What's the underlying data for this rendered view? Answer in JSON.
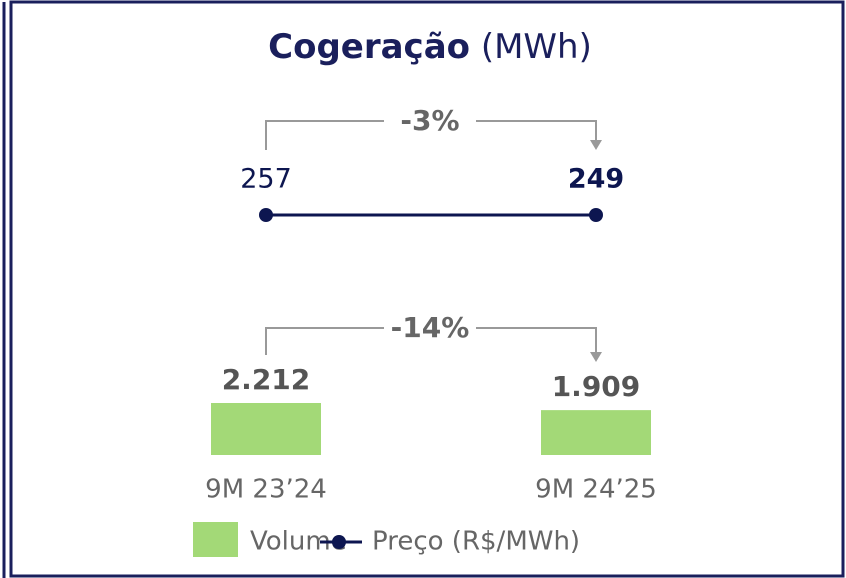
{
  "chart_data": {
    "type": "bar_line",
    "title": "Cogeração",
    "title_unit": "(MWh)",
    "categories": [
      "9M 23’24",
      "9M 24’25"
    ],
    "series": [
      {
        "name": "Volume",
        "type": "bar",
        "color": "#a3d977",
        "values": [
          2212,
          1909
        ],
        "value_labels": [
          "2.212",
          "1.909"
        ]
      },
      {
        "name": "Preço (R$/MWh)",
        "type": "line",
        "axis": "y2",
        "color": "#0d1650",
        "values": [
          257,
          249
        ]
      }
    ],
    "annotations": [
      {
        "series": 1,
        "text": "-3%"
      },
      {
        "series": 0,
        "text": "-14%"
      }
    ]
  }
}
